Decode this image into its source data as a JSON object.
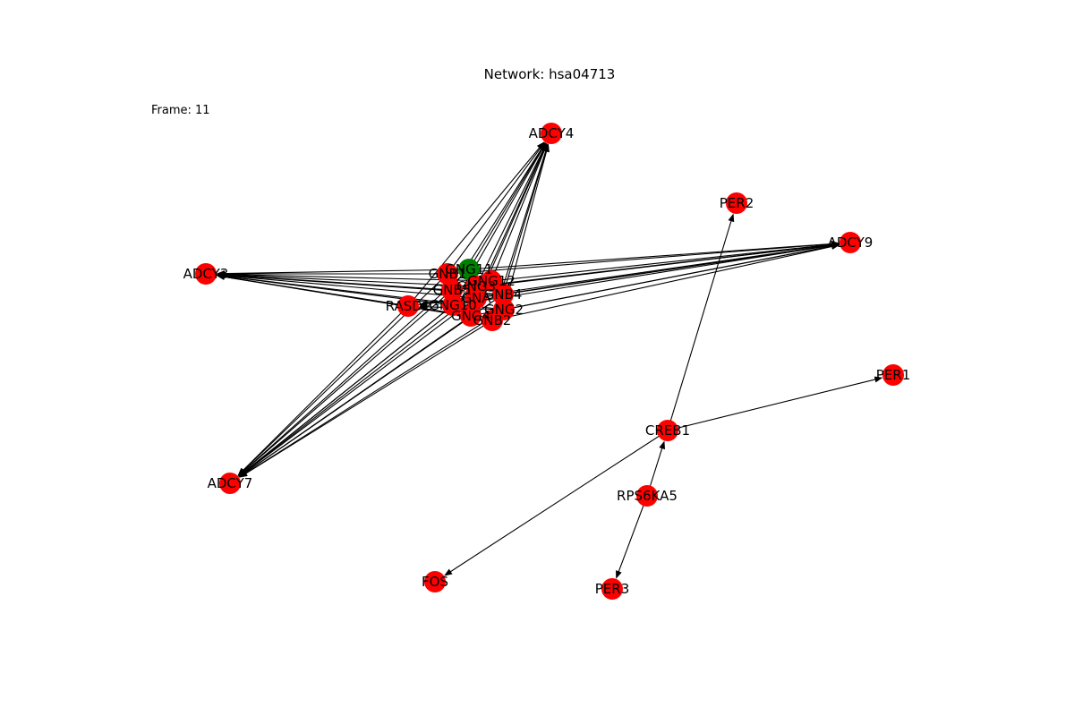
{
  "title": "Network: hsa04713",
  "frame_label": "Frame: 11",
  "colors": {
    "default_node": "#ff0000",
    "highlight_node": "#008000",
    "edge": "#000000"
  },
  "nodes": [
    {
      "id": "ADCY4",
      "label": "ADCY4",
      "color": "#ff0000"
    },
    {
      "id": "PER2",
      "label": "PER2",
      "color": "#ff0000"
    },
    {
      "id": "ADCY9",
      "label": "ADCY9",
      "color": "#ff0000"
    },
    {
      "id": "ADCY3",
      "label": "ADCY3",
      "color": "#ff0000"
    },
    {
      "id": "GNG11",
      "label": "GNG11",
      "color": "#008000"
    },
    {
      "id": "GNB1",
      "label": "GNB1",
      "color": "#ff0000"
    },
    {
      "id": "GNG12",
      "label": "GNG12",
      "color": "#ff0000"
    },
    {
      "id": "GNB5",
      "label": "GNB5",
      "color": "#ff0000"
    },
    {
      "id": "GNG3",
      "label": "GNG3",
      "color": "#ff0000"
    },
    {
      "id": "GNB4",
      "label": "GNB4",
      "color": "#ff0000"
    },
    {
      "id": "GNA",
      "label": "GNA",
      "color": "#ff0000"
    },
    {
      "id": "RASD1",
      "label": "RASD1",
      "color": "#ff0000"
    },
    {
      "id": "GNG10",
      "label": "GNG10",
      "color": "#ff0000"
    },
    {
      "id": "GNG2",
      "label": "GNG2",
      "color": "#ff0000"
    },
    {
      "id": "GNG4",
      "label": "GNG4",
      "color": "#ff0000"
    },
    {
      "id": "GNB2",
      "label": "GNB2",
      "color": "#ff0000"
    },
    {
      "id": "PER1",
      "label": "PER1",
      "color": "#ff0000"
    },
    {
      "id": "CREB1",
      "label": "CREB1",
      "color": "#ff0000"
    },
    {
      "id": "RPS6KA5",
      "label": "RPS6KA5",
      "color": "#ff0000"
    },
    {
      "id": "ADCY7",
      "label": "ADCY7",
      "color": "#ff0000"
    },
    {
      "id": "FOS",
      "label": "FOS",
      "color": "#ff0000"
    },
    {
      "id": "PER3",
      "label": "PER3",
      "color": "#ff0000"
    }
  ],
  "edges": [
    [
      "GNG11",
      "ADCY4"
    ],
    [
      "GNB1",
      "ADCY4"
    ],
    [
      "GNG12",
      "ADCY4"
    ],
    [
      "GNB5",
      "ADCY4"
    ],
    [
      "GNG3",
      "ADCY4"
    ],
    [
      "GNB4",
      "ADCY4"
    ],
    [
      "GNA",
      "ADCY4"
    ],
    [
      "RASD1",
      "ADCY4"
    ],
    [
      "GNG10",
      "ADCY4"
    ],
    [
      "GNG2",
      "ADCY4"
    ],
    [
      "GNG4",
      "ADCY4"
    ],
    [
      "GNB2",
      "ADCY4"
    ],
    [
      "GNG11",
      "ADCY9"
    ],
    [
      "GNB1",
      "ADCY9"
    ],
    [
      "GNG12",
      "ADCY9"
    ],
    [
      "GNB5",
      "ADCY9"
    ],
    [
      "GNG3",
      "ADCY9"
    ],
    [
      "GNB4",
      "ADCY9"
    ],
    [
      "GNA",
      "ADCY9"
    ],
    [
      "RASD1",
      "ADCY9"
    ],
    [
      "GNG10",
      "ADCY9"
    ],
    [
      "GNG2",
      "ADCY9"
    ],
    [
      "GNG4",
      "ADCY9"
    ],
    [
      "GNB2",
      "ADCY9"
    ],
    [
      "GNG11",
      "ADCY3"
    ],
    [
      "GNB1",
      "ADCY3"
    ],
    [
      "GNG12",
      "ADCY3"
    ],
    [
      "GNB5",
      "ADCY3"
    ],
    [
      "GNG3",
      "ADCY3"
    ],
    [
      "GNB4",
      "ADCY3"
    ],
    [
      "GNA",
      "ADCY3"
    ],
    [
      "RASD1",
      "ADCY3"
    ],
    [
      "GNG10",
      "ADCY3"
    ],
    [
      "GNG2",
      "ADCY3"
    ],
    [
      "GNG4",
      "ADCY3"
    ],
    [
      "GNB2",
      "ADCY3"
    ],
    [
      "GNG11",
      "ADCY7"
    ],
    [
      "GNB1",
      "ADCY7"
    ],
    [
      "GNG12",
      "ADCY7"
    ],
    [
      "GNB5",
      "ADCY7"
    ],
    [
      "GNG3",
      "ADCY7"
    ],
    [
      "GNB4",
      "ADCY7"
    ],
    [
      "GNA",
      "ADCY7"
    ],
    [
      "RASD1",
      "ADCY7"
    ],
    [
      "GNG10",
      "ADCY7"
    ],
    [
      "GNG2",
      "ADCY7"
    ],
    [
      "GNG4",
      "ADCY7"
    ],
    [
      "GNB2",
      "ADCY7"
    ],
    [
      "GNG2",
      "RASD1"
    ],
    [
      "GNB4",
      "RASD1"
    ],
    [
      "CREB1",
      "PER2"
    ],
    [
      "CREB1",
      "PER1"
    ],
    [
      "CREB1",
      "FOS"
    ],
    [
      "RPS6KA5",
      "CREB1"
    ],
    [
      "RPS6KA5",
      "PER3"
    ]
  ]
}
